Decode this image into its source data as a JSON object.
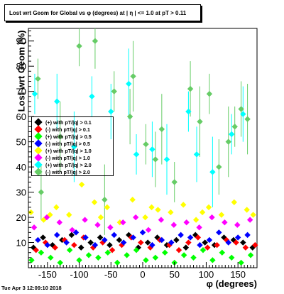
{
  "chart_data": {
    "type": "scatter",
    "title": "Lost wrt Geom for Global vs φ (degrees) at | η | <= 1.0 at pT > 0.11",
    "xlabel": "φ (degrees)",
    "ylabel": "Lost wrt Geom (%)",
    "xlim": [
      -180,
      180
    ],
    "ylim": [
      0,
      95
    ],
    "x_ticks": [
      -150,
      -100,
      -50,
      0,
      50,
      100,
      150
    ],
    "y_ticks": [
      10,
      20,
      30,
      40,
      50,
      60,
      70,
      80,
      90
    ],
    "legend_placement": "left-middle",
    "grid": false,
    "series": [
      {
        "name": "(+) with pT/|q| > 0.1",
        "color": "#000000",
        "x": [
          -172,
          -157,
          -142,
          -127,
          -112,
          -97,
          -82,
          -67,
          -52,
          -37,
          -22,
          -7,
          8,
          23,
          38,
          53,
          68,
          83,
          98,
          113,
          128,
          143,
          158,
          173
        ],
        "y": [
          8,
          12,
          9,
          11,
          13,
          8,
          10,
          12,
          9,
          11,
          13,
          8,
          10,
          12,
          9,
          11,
          8,
          13,
          10,
          9,
          12,
          11,
          10,
          8
        ]
      },
      {
        "name": "(-) with pT/|q| > 0.1",
        "color": "#ff0000",
        "x": [
          -168,
          -153,
          -138,
          -123,
          -108,
          -93,
          -78,
          -63,
          -48,
          -33,
          -18,
          -3,
          12,
          27,
          42,
          57,
          72,
          87,
          102,
          117,
          132,
          147,
          162,
          177
        ],
        "y": [
          7,
          10,
          8,
          11,
          9,
          12,
          8,
          10,
          7,
          9,
          12,
          10,
          8,
          11,
          9,
          7,
          10,
          12,
          8,
          9,
          11,
          10,
          8,
          9
        ]
      },
      {
        "name": "(+) with pT/|q| > 0.5",
        "color": "#00ff00",
        "x": [
          -175,
          -160,
          -145,
          -130,
          -115,
          -100,
          -85,
          -70,
          -55,
          -40,
          -25,
          -10,
          5,
          20,
          35,
          50,
          65,
          80,
          95,
          110,
          125,
          140,
          155,
          170
        ],
        "y": [
          3,
          6,
          4,
          2,
          7,
          3,
          5,
          4,
          6,
          2,
          5,
          7,
          3,
          4,
          6,
          2,
          5,
          4,
          7,
          3,
          6,
          4,
          2,
          5
        ]
      },
      {
        "name": "(-) with pT/|q| > 0.5",
        "color": "#0000ff",
        "x": [
          -165,
          -150,
          -135,
          -120,
          -105,
          -90,
          -75,
          -60,
          -45,
          -30,
          -15,
          0,
          15,
          30,
          45,
          60,
          75,
          90,
          105,
          120,
          135,
          150,
          165
        ],
        "y": [
          11,
          9,
          13,
          10,
          14,
          12,
          9,
          11,
          13,
          10,
          12,
          14,
          9,
          11,
          10,
          13,
          12,
          9,
          11,
          14,
          10,
          12,
          13
        ]
      },
      {
        "name": "(+) with pT/|q| > 1.0",
        "color": "#ffff00",
        "x": [
          -176,
          -156,
          -136,
          -116,
          -96,
          -76,
          -56,
          -36,
          -16,
          4,
          24,
          44,
          64,
          84,
          104,
          124,
          144,
          164,
          -146,
          -66,
          14,
          94,
          174
        ],
        "y": [
          22,
          19,
          24,
          21,
          33,
          26,
          24,
          18,
          27,
          20,
          23,
          22,
          25,
          19,
          24,
          21,
          26,
          23,
          21,
          20,
          24,
          22,
          21
        ]
      },
      {
        "name": "(-) with pT/|q| > 1.0",
        "color": "#ff00ff",
        "x": [
          -171,
          -151,
          -131,
          -111,
          -91,
          -71,
          -51,
          -31,
          -11,
          9,
          29,
          49,
          69,
          89,
          109,
          129,
          149,
          169
        ],
        "y": [
          16,
          20,
          18,
          15,
          19,
          17,
          16,
          18,
          20,
          15,
          19,
          17,
          18,
          16,
          20,
          18,
          17,
          19
        ]
      },
      {
        "name": "(+) with pT/|q| > 2.0",
        "color": "#00ffff",
        "x": [
          -170,
          -135,
          -108,
          -80,
          -50,
          -22,
          -10,
          15,
          38,
          72,
          85,
          110,
          140,
          158
        ],
        "y": [
          69,
          66,
          48,
          68,
          62,
          73,
          45,
          47,
          43,
          62,
          45,
          38,
          53,
          61
        ]
      },
      {
        "name": "(-) with pT/|q| > 2.0",
        "color": "#66cc66",
        "x": [
          -165,
          -160,
          -130,
          -100,
          -75,
          -60,
          -45,
          -20,
          -15,
          5,
          20,
          30,
          50,
          75,
          90,
          105,
          120,
          135,
          145,
          155,
          165
        ],
        "y": [
          75,
          30,
          52,
          88,
          90,
          27,
          70,
          60,
          76,
          49,
          43,
          55,
          34,
          71,
          58,
          69,
          40,
          50,
          56,
          63,
          59
        ]
      }
    ]
  },
  "timestamp": "Tue Apr  3 12:09:10 2018"
}
